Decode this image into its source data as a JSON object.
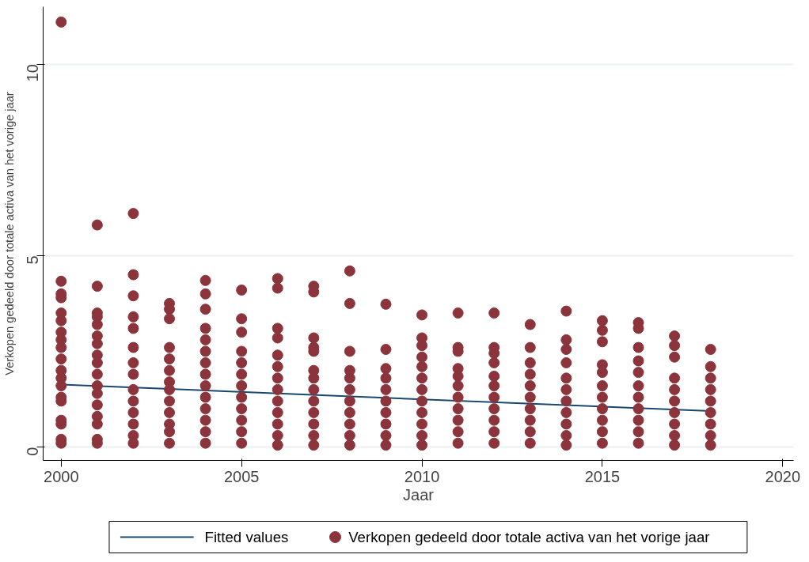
{
  "chart_data": {
    "type": "scatter",
    "xlabel": "Jaar",
    "ylabel": "Verkopen gedeeld door totale activa van het vorige jaar",
    "xlim": [
      1999.5,
      2020.3
    ],
    "ylim": [
      -0.35,
      11.5
    ],
    "xticks": [
      2000,
      2005,
      2010,
      2015,
      2020
    ],
    "yticks": [
      0,
      5,
      10
    ],
    "grid": "y",
    "legend": "bottom",
    "series": [
      {
        "name": "Fitted values",
        "type": "line",
        "line_style": "solid",
        "color": "#1a476f",
        "x": [
          2000,
          2018
        ],
        "values": [
          1.63,
          0.94
        ]
      },
      {
        "name": "Verkopen gedeeld door totale activa van het vorige jaar",
        "marker": "circle",
        "color": "#8b343c",
        "x": [
          2000,
          2000,
          2000,
          2000,
          2000,
          2000,
          2000,
          2000,
          2000,
          2000,
          2000,
          2000,
          2000,
          2000,
          2000,
          2000,
          2000,
          2000,
          2000,
          2001,
          2001,
          2001,
          2001,
          2001,
          2001,
          2001,
          2001,
          2001,
          2001,
          2001,
          2001,
          2001,
          2001,
          2001,
          2001,
          2001,
          2002,
          2002,
          2002,
          2002,
          2002,
          2002,
          2002,
          2002,
          2002,
          2002,
          2002,
          2002,
          2002,
          2002,
          2003,
          2003,
          2003,
          2003,
          2003,
          2003,
          2003,
          2003,
          2003,
          2003,
          2003,
          2003,
          2003,
          2004,
          2004,
          2004,
          2004,
          2004,
          2004,
          2004,
          2004,
          2004,
          2004,
          2004,
          2004,
          2004,
          2004,
          2005,
          2005,
          2005,
          2005,
          2005,
          2005,
          2005,
          2005,
          2005,
          2005,
          2005,
          2005,
          2006,
          2006,
          2006,
          2006,
          2006,
          2006,
          2006,
          2006,
          2006,
          2006,
          2006,
          2006,
          2006,
          2007,
          2007,
          2007,
          2007,
          2007,
          2007,
          2007,
          2007,
          2007,
          2007,
          2007,
          2007,
          2007,
          2008,
          2008,
          2008,
          2008,
          2008,
          2008,
          2008,
          2008,
          2008,
          2008,
          2008,
          2009,
          2009,
          2009,
          2009,
          2009,
          2009,
          2009,
          2009,
          2009,
          2009,
          2010,
          2010,
          2010,
          2010,
          2010,
          2010,
          2010,
          2010,
          2010,
          2010,
          2010,
          2010,
          2011,
          2011,
          2011,
          2011,
          2011,
          2011,
          2011,
          2011,
          2011,
          2011,
          2011,
          2012,
          2012,
          2012,
          2012,
          2012,
          2012,
          2012,
          2012,
          2012,
          2012,
          2012,
          2013,
          2013,
          2013,
          2013,
          2013,
          2013,
          2013,
          2013,
          2013,
          2013,
          2014,
          2014,
          2014,
          2014,
          2014,
          2014,
          2014,
          2014,
          2014,
          2014,
          2014,
          2015,
          2015,
          2015,
          2015,
          2015,
          2015,
          2015,
          2015,
          2015,
          2015,
          2015,
          2016,
          2016,
          2016,
          2016,
          2016,
          2016,
          2016,
          2016,
          2016,
          2016,
          2016,
          2017,
          2017,
          2017,
          2017,
          2017,
          2017,
          2017,
          2017,
          2017,
          2017,
          2018,
          2018,
          2018,
          2018,
          2018,
          2018,
          2018,
          2018,
          2018
        ],
        "values": [
          11.1,
          4.33,
          4.0,
          3.9,
          3.5,
          3.3,
          3.0,
          2.8,
          2.6,
          2.3,
          2.0,
          1.8,
          1.6,
          1.3,
          1.2,
          0.7,
          0.6,
          0.2,
          0.1,
          5.8,
          4.2,
          3.5,
          3.4,
          3.2,
          2.9,
          2.7,
          2.4,
          2.2,
          1.9,
          1.6,
          1.4,
          1.1,
          0.8,
          0.6,
          0.2,
          0.1,
          6.1,
          4.5,
          3.95,
          3.4,
          3.1,
          2.6,
          2.2,
          1.9,
          1.5,
          1.2,
          0.9,
          0.6,
          0.3,
          0.1,
          3.75,
          3.6,
          3.35,
          2.6,
          2.3,
          2.0,
          1.7,
          1.5,
          1.2,
          0.9,
          0.6,
          0.4,
          0.1,
          4.35,
          4.0,
          3.6,
          3.1,
          2.8,
          2.5,
          2.2,
          1.9,
          1.6,
          1.3,
          1.0,
          0.7,
          0.4,
          0.1,
          4.1,
          3.35,
          3.0,
          2.5,
          2.2,
          1.9,
          1.6,
          1.3,
          1.0,
          0.7,
          0.4,
          0.1,
          4.4,
          4.15,
          3.1,
          2.85,
          2.4,
          2.1,
          1.8,
          1.5,
          1.2,
          0.9,
          0.6,
          0.3,
          0.05,
          4.2,
          4.05,
          2.85,
          2.6,
          2.5,
          2.0,
          1.8,
          1.5,
          1.2,
          0.9,
          0.6,
          0.3,
          0.05,
          4.6,
          3.75,
          2.5,
          2.0,
          1.8,
          1.5,
          1.2,
          0.9,
          0.6,
          0.3,
          0.05,
          3.73,
          2.55,
          2.05,
          1.8,
          1.5,
          1.2,
          0.9,
          0.6,
          0.3,
          0.05,
          3.45,
          2.85,
          2.65,
          2.35,
          2.1,
          1.8,
          1.5,
          1.2,
          0.9,
          0.6,
          0.3,
          0.05,
          3.5,
          2.6,
          2.5,
          2.05,
          1.85,
          1.6,
          1.3,
          1.0,
          0.7,
          0.4,
          0.1,
          3.5,
          2.6,
          2.45,
          2.2,
          1.85,
          1.6,
          1.3,
          1.0,
          0.7,
          0.4,
          0.1,
          3.2,
          2.6,
          2.2,
          1.9,
          1.6,
          1.3,
          1.0,
          0.7,
          0.4,
          0.1,
          3.55,
          2.8,
          2.55,
          2.2,
          1.8,
          1.5,
          1.2,
          0.9,
          0.6,
          0.3,
          0.05,
          3.3,
          3.05,
          2.75,
          2.15,
          1.95,
          1.6,
          1.3,
          1.0,
          0.7,
          0.4,
          0.1,
          3.25,
          3.1,
          2.6,
          2.25,
          1.95,
          1.6,
          1.3,
          1.0,
          0.7,
          0.4,
          0.1,
          2.9,
          2.65,
          2.35,
          1.8,
          1.5,
          1.2,
          0.9,
          0.6,
          0.3,
          0.05,
          2.55,
          2.1,
          1.8,
          1.5,
          1.2,
          0.9,
          0.6,
          0.3,
          0.05
        ]
      }
    ]
  }
}
